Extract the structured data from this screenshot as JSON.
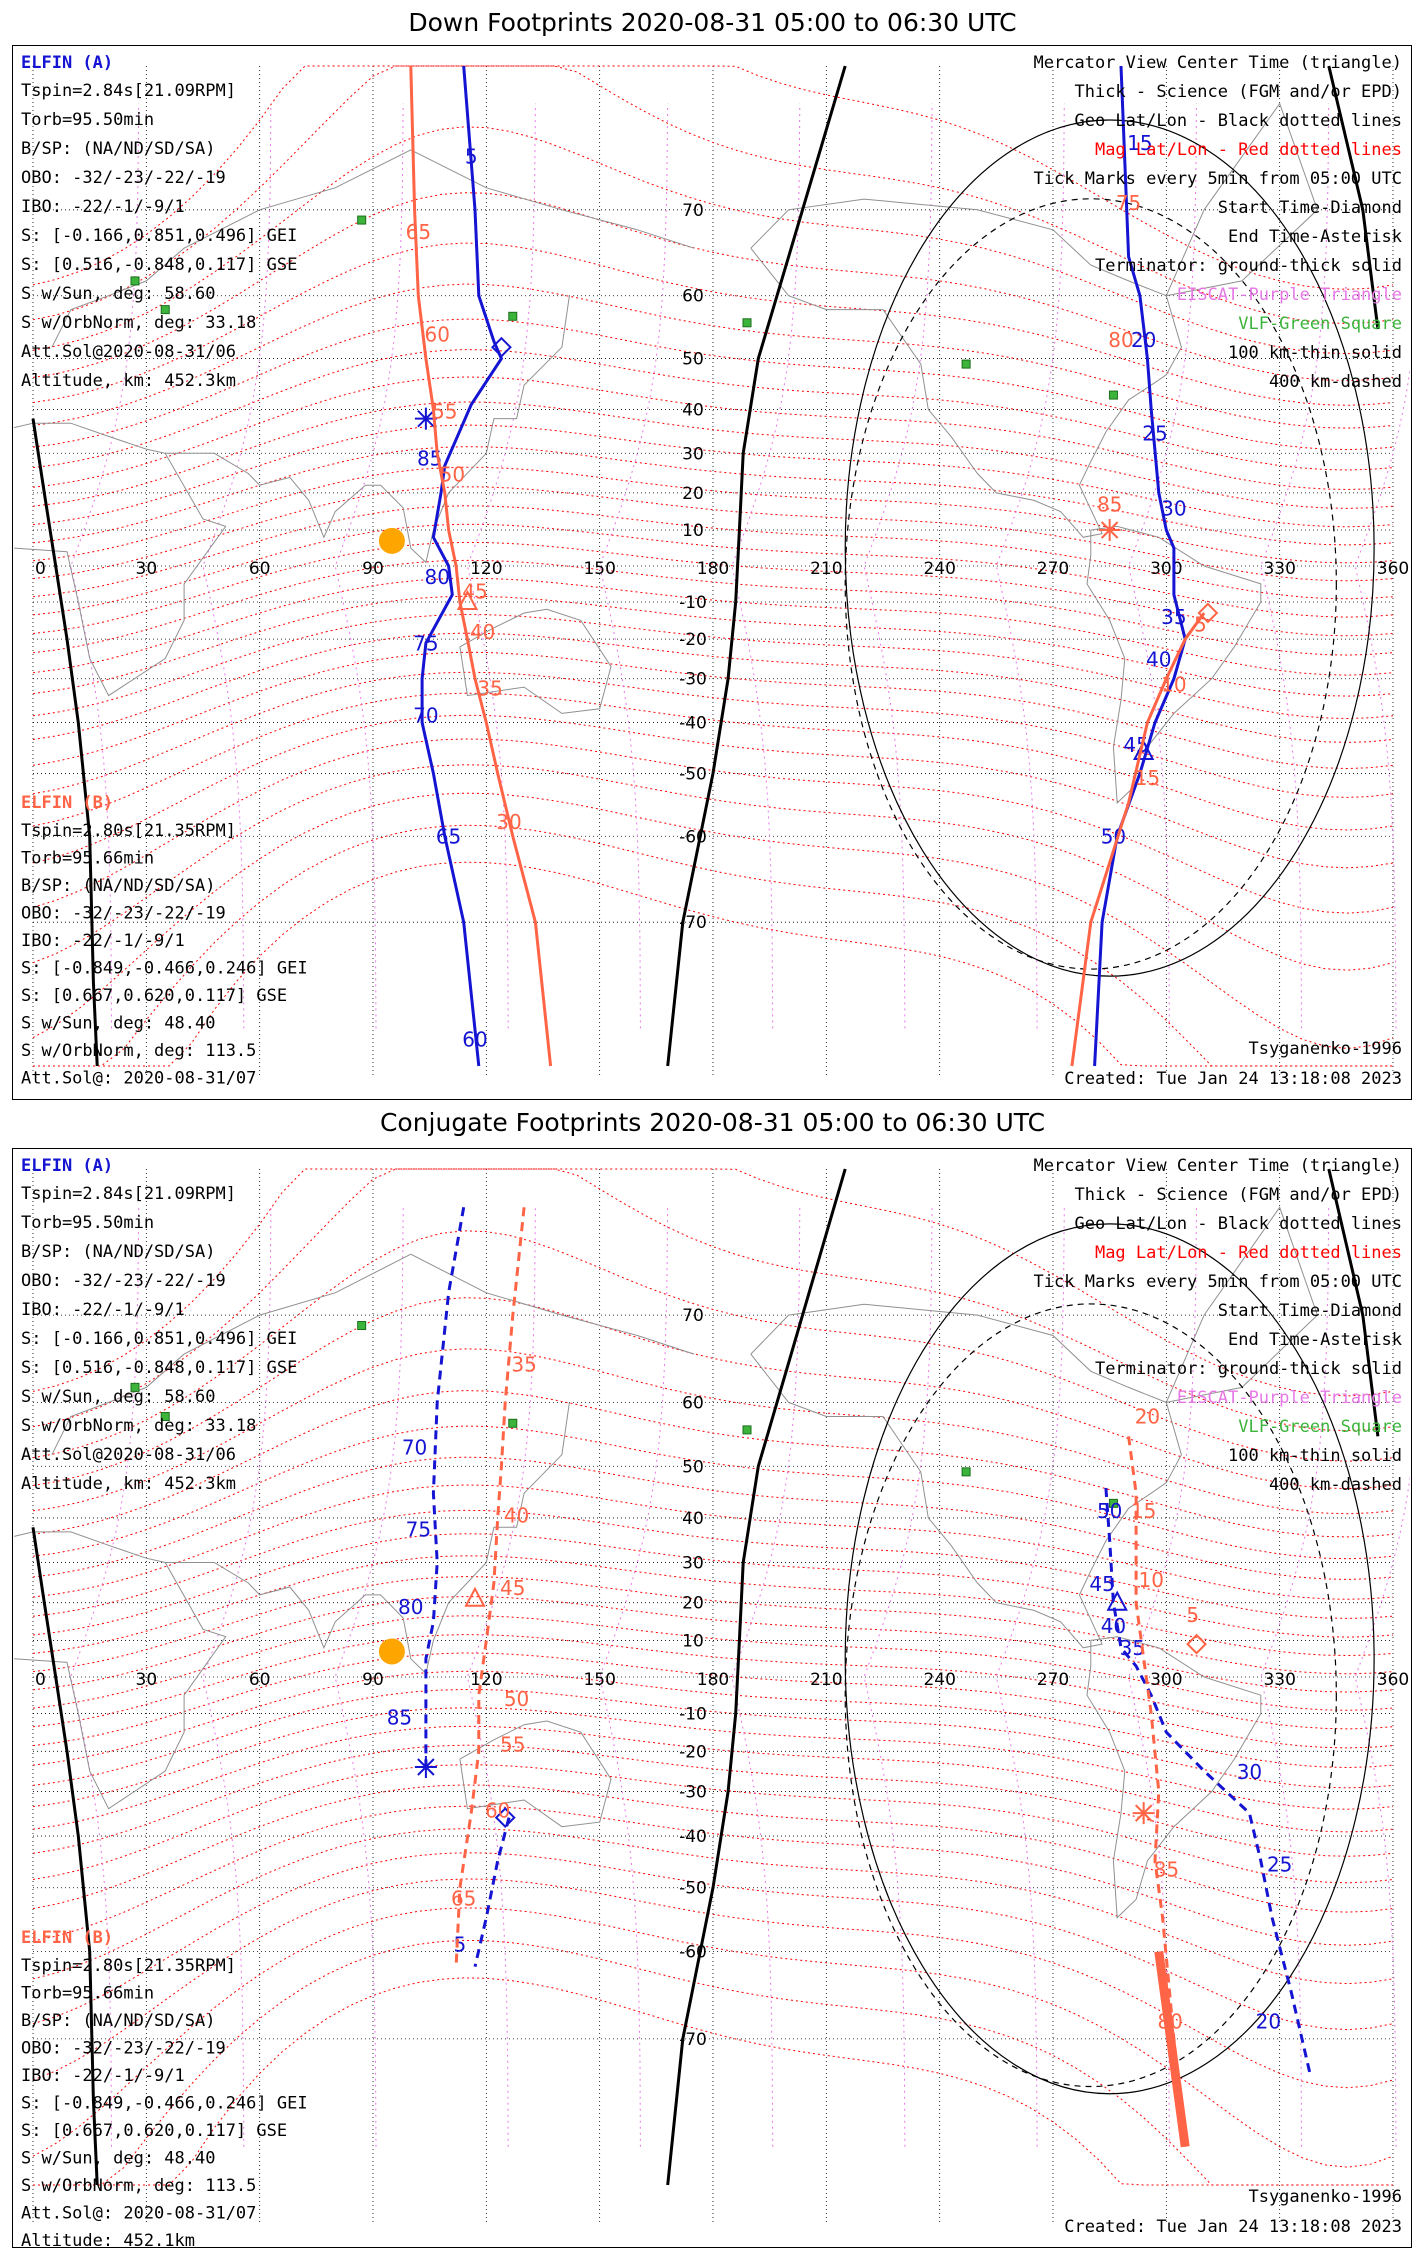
{
  "colors": {
    "sc_a": "#1414d2",
    "sc_b": "#ff6446",
    "mag_grid": "#ff0000",
    "geo_grid": "#000000",
    "eiscat": "#e678e6",
    "vlf": "#3cb43c",
    "sun": "#ffa500"
  },
  "panels": [
    {
      "title": "Down Footprints 2020-08-31 05:00 to 06:30 UTC",
      "left_a": {
        "name": "ELFIN (A)",
        "lines": [
          "Tspin=2.84s[21.09RPM]",
          "Torb=95.50min",
          "B/SP: (NA/ND/SD/SA)",
          "OBO: -32/-23/-22/-19",
          "IBO: -22/-1/-9/1",
          "S: [-0.166,0.851,0.496] GEI",
          "S: [0.516,-0.848,0.117] GSE",
          "S w/Sun, deg: 58.60",
          "S w/OrbNorm, deg: 33.18",
          "Att.Sol@2020-08-31/06",
          "Altitude, km: 452.3km"
        ]
      },
      "left_b": {
        "name": "ELFIN (B)",
        "lines": [
          "Tspin=2.80s[21.35RPM]",
          "Torb=95.66min",
          "B/SP: (NA/ND/SD/SA)",
          "OBO: -32/-23/-22/-19",
          "IBO: -22/-1/-9/1",
          "S: [-0.849,-0.466,0.246] GEI",
          "S: [0.667,0.620,0.117] GSE",
          "S w/Sun, deg: 48.40",
          "S w/OrbNorm, deg: 113.5",
          "Att.Sol@: 2020-08-31/07",
          "Altitude: 452.1km"
        ]
      },
      "legend": [
        "Mercator View Center Time (triangle)",
        "Thick - Science (FGM and/or EPD)",
        "Geo Lat/Lon - Black dotted lines",
        "Mag Lat/Lon - Red dotted lines",
        "Tick Marks every 5min from 05:00 UTC",
        "Start Time-Diamond",
        "End Time-Asterisk",
        "Terminator: ground-thick solid",
        "EISCAT-Purple Triangle",
        "VLF-Green Square",
        "100 km-thin solid",
        "400 km-dashed"
      ],
      "model": "Tsyganenko-1996",
      "created": "Created: Tue Jan 24 13:18:08 2023"
    },
    {
      "title": "Conjugate Footprints 2020-08-31 05:00 to 06:30 UTC",
      "left_a": {
        "name": "ELFIN (A)",
        "lines": [
          "Tspin=2.84s[21.09RPM]",
          "Torb=95.50min",
          "B/SP: (NA/ND/SD/SA)",
          "OBO: -32/-23/-22/-19",
          "IBO: -22/-1/-9/1",
          "S: [-0.166,0.851,0.496] GEI",
          "S: [0.516,-0.848,0.117] GSE",
          "S w/Sun, deg: 58.60",
          "S w/OrbNorm, deg: 33.18",
          "Att.Sol@2020-08-31/06",
          "Altitude, km: 452.3km"
        ]
      },
      "left_b": {
        "name": "ELFIN (B)",
        "lines": [
          "Tspin=2.80s[21.35RPM]",
          "Torb=95.66min",
          "B/SP: (NA/ND/SD/SA)",
          "OBO: -32/-23/-22/-19",
          "IBO: -22/-1/-9/1",
          "S: [-0.849,-0.466,0.246] GEI",
          "S: [0.667,0.620,0.117] GSE",
          "S w/Sun, deg: 48.40",
          "S w/OrbNorm, deg: 113.5",
          "Att.Sol@: 2020-08-31/07",
          "Altitude: 452.1km"
        ]
      },
      "legend": [
        "Mercator View Center Time (triangle)",
        "Thick - Science (FGM and/or EPD)",
        "Geo Lat/Lon - Black dotted lines",
        "Mag Lat/Lon - Red dotted lines",
        "Tick Marks every 5min from 05:00 UTC",
        "Start Time-Diamond",
        "End Time-Asterisk",
        "Terminator: ground-thick solid",
        "EISCAT-Purple Triangle",
        "VLF-Green Square",
        "100 km-thin solid",
        "400 km-dashed"
      ],
      "model": "Tsyganenko-1996",
      "created": "Created: Tue Jan 24 13:18:08 2023"
    }
  ],
  "chart_data": [
    {
      "type": "scatter",
      "projection": "mercator",
      "xlim": [
        0,
        360
      ],
      "ylim": [
        -80,
        80
      ],
      "x_ticks": [
        0,
        30,
        60,
        90,
        120,
        150,
        180,
        210,
        240,
        270,
        300,
        330,
        360
      ],
      "y_ticks": [
        -70,
        -60,
        -50,
        -40,
        -30,
        -20,
        -10,
        10,
        20,
        30,
        40,
        50,
        60,
        70
      ],
      "sun": [
        95,
        7
      ],
      "vlf_sites": [
        [
          87,
          69
        ],
        [
          27,
          62
        ],
        [
          35,
          58
        ],
        [
          127,
          57
        ],
        [
          189,
          56
        ],
        [
          247,
          49
        ],
        [
          286,
          43
        ]
      ],
      "series": [
        {
          "name": "ELFIN (A)",
          "style": "solid",
          "points": [
            [
              114,
              80
            ],
            [
              117,
              70
            ],
            [
              118,
              60
            ],
            [
              122,
              53
            ],
            [
              124,
              50
            ],
            [
              116,
              41
            ],
            [
              109,
              27
            ],
            [
              108,
              20
            ],
            [
              106,
              8
            ],
            [
              110,
              0
            ],
            [
              111,
              -8
            ],
            [
              104,
              -21
            ],
            [
              103,
              -30
            ],
            [
              103,
              -40
            ],
            [
              106,
              -50
            ],
            [
              109,
              -60
            ],
            [
              114,
              -70
            ],
            [
              118,
              -80
            ]
          ],
          "science": [],
          "ticks": [
            [
              116,
              74,
              "5"
            ],
            [
              105,
              27,
              "85"
            ],
            [
              107,
              -5,
              "80"
            ],
            [
              104,
              -23,
              "75"
            ],
            [
              104,
              -40,
              "70"
            ],
            [
              110,
              -61,
              "65"
            ],
            [
              117,
              -79,
              "60"
            ]
          ],
          "start": [
            124,
            52
          ],
          "end": [
            104,
            38
          ],
          "center": null,
          "points2": [
            [
              288,
              80
            ],
            [
              290,
              65
            ],
            [
              293,
              60
            ],
            [
              295,
              50
            ],
            [
              296,
              40
            ],
            [
              298,
              20
            ],
            [
              300,
              10
            ],
            [
              302,
              5
            ],
            [
              302,
              -8
            ],
            [
              305,
              -20
            ],
            [
              302,
              -30
            ],
            [
              297,
              -40
            ],
            [
              293,
              -50
            ],
            [
              287,
              -60
            ],
            [
              283,
              -70
            ],
            [
              281,
              -80
            ]
          ],
          "ticks2": [
            [
              293,
              75,
              "15"
            ],
            [
              294,
              52,
              "20"
            ],
            [
              297,
              33,
              "25"
            ],
            [
              302,
              14,
              "30"
            ],
            [
              302,
              -16,
              "35"
            ],
            [
              298,
              -27,
              "40"
            ],
            [
              292,
              -46,
              "45"
            ],
            [
              286,
              -61,
              "50"
            ]
          ],
          "center2": [
            294,
            -46
          ]
        },
        {
          "name": "ELFIN (B)",
          "style": "solid",
          "points": [
            [
              100,
              80
            ],
            [
              101,
              70
            ],
            [
              102,
              60
            ],
            [
              104,
              50
            ],
            [
              106,
              40
            ],
            [
              107,
              30
            ],
            [
              109,
              20
            ],
            [
              110,
              10
            ],
            [
              112,
              0
            ],
            [
              113,
              -10
            ],
            [
              115,
              -20
            ],
            [
              117,
              -30
            ],
            [
              120,
              -40
            ],
            [
              123,
              -50
            ],
            [
              127,
              -60
            ],
            [
              133,
              -70
            ],
            [
              137,
              -80
            ]
          ],
          "science": [],
          "ticks": [
            [
              102,
              67,
              "65"
            ],
            [
              107,
              53,
              "60"
            ],
            [
              109,
              38,
              "55"
            ],
            [
              111,
              23,
              "50"
            ],
            [
              117,
              -9,
              "45"
            ],
            [
              119,
              -20,
              "40"
            ],
            [
              121,
              -34,
              "35"
            ],
            [
              126,
              -59,
              "30"
            ]
          ],
          "start": null,
          "end": null,
          "center": [
            115,
            -10
          ],
          "points2": [
            [
              275,
              -80
            ],
            [
              280,
              -70
            ],
            [
              290,
              -55
            ],
            [
              295,
              -40
            ],
            [
              300,
              -30
            ],
            [
              305,
              -20
            ],
            [
              310,
              -13
            ]
          ],
          "ticks2": [
            [
              309,
              -18,
              "5"
            ],
            [
              302,
              -33,
              "10"
            ],
            [
              295,
              -52,
              "15"
            ],
            [
              285,
              15,
              "85"
            ],
            [
              288,
              52,
              "80"
            ],
            [
              290,
              70,
              "75"
            ]
          ],
          "start2": [
            311,
            -13
          ],
          "end2": [
            285,
            10
          ],
          "center2": null
        }
      ]
    },
    {
      "type": "scatter",
      "projection": "mercator",
      "xlim": [
        0,
        360
      ],
      "ylim": [
        -80,
        80
      ],
      "x_ticks": [
        0,
        30,
        60,
        90,
        120,
        150,
        180,
        210,
        240,
        270,
        300,
        330,
        360
      ],
      "y_ticks": [
        -70,
        -60,
        -50,
        -40,
        -30,
        -20,
        -10,
        10,
        20,
        30,
        40,
        50,
        60,
        70
      ],
      "sun": [
        95,
        7
      ],
      "vlf_sites": [
        [
          87,
          69
        ],
        [
          27,
          62
        ],
        [
          35,
          58
        ],
        [
          127,
          57
        ],
        [
          189,
          56
        ],
        [
          247,
          49
        ],
        [
          286,
          43
        ]
      ],
      "series": [
        {
          "name": "ELFIN (A)",
          "style": "dashed",
          "points": [
            [
              114,
              78
            ],
            [
              110,
              72
            ],
            [
              107,
              60
            ],
            [
              106,
              45
            ],
            [
              107,
              30
            ],
            [
              106,
              15
            ],
            [
              104,
              5
            ],
            [
              104,
              -10
            ],
            [
              104,
              -24
            ]
          ],
          "ticks": [
            [
              101,
              52,
              "70"
            ],
            [
              102,
              36,
              "75"
            ],
            [
              100,
              17,
              "80"
            ],
            [
              97,
              -13,
              "85"
            ]
          ],
          "start2": [
            125,
            -36
          ],
          "end": [
            104,
            -24
          ],
          "center": null,
          "points_b": [
            [
              126,
              -36
            ],
            [
              123,
              -45
            ],
            [
              120,
              -55
            ],
            [
              117,
              -62
            ]
          ],
          "ticks_b": [
            [
              113,
              -60,
              "5"
            ]
          ],
          "points2": [
            [
              284,
              46
            ],
            [
              285,
              35
            ],
            [
              286,
              20
            ],
            [
              288,
              8
            ],
            [
              292,
              3
            ],
            [
              296,
              -5
            ],
            [
              300,
              -15
            ],
            [
              310,
              -25
            ],
            [
              322,
              -35
            ],
            [
              325,
              -45
            ],
            [
              328,
              -55
            ],
            [
              333,
              -65
            ],
            [
              338,
              -73
            ]
          ],
          "ticks2": [
            [
              285,
              40,
              "50"
            ],
            [
              283,
              23,
              "45"
            ],
            [
              286,
              12,
              "40"
            ],
            [
              291,
              6,
              "35"
            ],
            [
              322,
              -27,
              "30"
            ],
            [
              330,
              -47,
              "25"
            ],
            [
              327,
              -69,
              "20"
            ]
          ],
          "center2": [
            287,
            20
          ]
        },
        {
          "name": "ELFIN (B)",
          "style": "dashed",
          "points": [
            [
              130,
              78
            ],
            [
              127,
              70
            ],
            [
              125,
              60
            ],
            [
              124,
              50
            ],
            [
              123,
              40
            ],
            [
              122,
              25
            ],
            [
              120,
              10
            ],
            [
              118,
              -5
            ],
            [
              118,
              -20
            ],
            [
              116,
              -35
            ],
            [
              113,
              -50
            ],
            [
              112,
              -62
            ]
          ],
          "ticks": [
            [
              130,
              64,
              "35"
            ],
            [
              128,
              39,
              "40"
            ],
            [
              127,
              22,
              "45"
            ],
            [
              128,
              -8,
              "50"
            ],
            [
              127,
              -20,
              "55"
            ],
            [
              123,
              -36,
              "60"
            ],
            [
              114,
              -53,
              "65"
            ]
          ],
          "center": [
            117,
            21
          ],
          "start": null,
          "end": null,
          "points2": [
            [
              290,
              55
            ],
            [
              292,
              45
            ],
            [
              292,
              35
            ],
            [
              292,
              20
            ],
            [
              296,
              -10
            ],
            [
              298,
              -30
            ],
            [
              297,
              -45
            ],
            [
              299,
              -55
            ],
            [
              302,
              -70
            ],
            [
              305,
              -78
            ]
          ],
          "science2": [
            [
              298,
              -60
            ],
            [
              305,
              -78
            ]
          ],
          "ticks2": [
            [
              295,
              57,
              "20"
            ],
            [
              294,
              40,
              "15"
            ],
            [
              296,
              24,
              "10"
            ],
            [
              307,
              15,
              "5"
            ],
            [
              300,
              -48,
              "85"
            ],
            [
              301,
              -69,
              "80"
            ]
          ],
          "start2": [
            308,
            9
          ],
          "end2": [
            294,
            -35
          ],
          "center2": null
        }
      ]
    }
  ]
}
